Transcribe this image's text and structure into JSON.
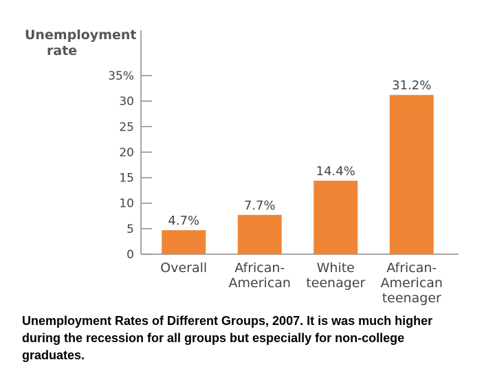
{
  "caption": "Unemployment Rates of Different Groups, 2007. It is was much higher during the recession for all groups but especially for non-college graduates.",
  "chart_data": {
    "type": "bar",
    "ylabel": [
      "Unemployment",
      "rate"
    ],
    "categories": [
      [
        "Overall"
      ],
      [
        "African-",
        "American"
      ],
      [
        "White",
        "teenager"
      ],
      [
        "African-",
        "American",
        "teenager"
      ]
    ],
    "values": [
      4.7,
      7.7,
      14.4,
      31.2
    ],
    "data_labels": [
      "4.7%",
      "7.7%",
      "14.4%",
      "31.2%"
    ],
    "ylim": [
      0,
      35
    ],
    "yticks": [
      0,
      5,
      10,
      15,
      20,
      25,
      30,
      35
    ],
    "ytick_labels": [
      "0",
      "5",
      "10",
      "15",
      "20",
      "25",
      "30",
      "35%"
    ],
    "bar_color": "#f08535",
    "axis_color": "#888888",
    "grid": false
  }
}
